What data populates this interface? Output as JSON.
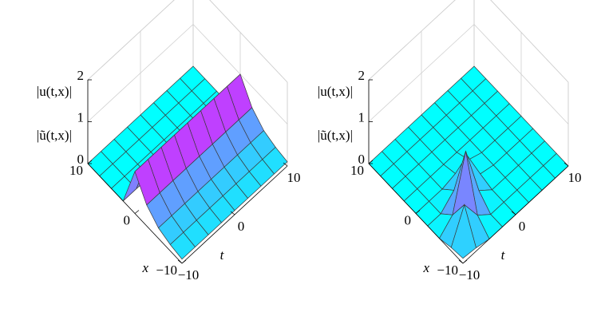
{
  "chart_data": [
    {
      "type": "surface",
      "t": [
        -10,
        -7.5,
        -5,
        -2.5,
        0,
        2.5,
        5,
        7.5,
        10
      ],
      "x": [
        -10,
        -7.5,
        -5,
        -2.5,
        0,
        2.5,
        5,
        7.5,
        10
      ],
      "z": [
        [
          0.1,
          0.15,
          0.25,
          0.5,
          1,
          0,
          0,
          0,
          0
        ],
        [
          0.1,
          0.15,
          0.25,
          0.5,
          1,
          0,
          0,
          0,
          0
        ],
        [
          0.1,
          0.15,
          0.25,
          0.5,
          1,
          0,
          0,
          0,
          0
        ],
        [
          0.1,
          0.15,
          0.25,
          0.5,
          1,
          0,
          0,
          0,
          0
        ],
        [
          0.1,
          0.15,
          0.25,
          0.5,
          1,
          0,
          0,
          0,
          0
        ],
        [
          0.1,
          0.15,
          0.25,
          0.5,
          1,
          0,
          0,
          0,
          0
        ],
        [
          0.1,
          0.15,
          0.25,
          0.5,
          1,
          0,
          0,
          0,
          0
        ],
        [
          0.1,
          0.15,
          0.25,
          0.5,
          1,
          0,
          0,
          0,
          0
        ],
        [
          0.1,
          0.15,
          0.25,
          0.5,
          1,
          0,
          0,
          0,
          0
        ]
      ],
      "tlim": [
        -10,
        10
      ],
      "xlim": [
        -10,
        10
      ],
      "zlim": [
        0,
        2
      ],
      "tticks": [
        {
          "value": -10,
          "label": "−10"
        },
        0,
        10
      ],
      "xticks": [
        {
          "value": -10,
          "label": "−10"
        },
        0,
        10
      ],
      "zticks": [
        0,
        1,
        2
      ],
      "tlabel": "t",
      "xlabel": "x",
      "zlabel": [
        "|u(t,x)|",
        "|ũ(t,x)|"
      ],
      "colormap": [
        "#00ffff",
        "#ff00ff"
      ],
      "grid": true
    },
    {
      "type": "surface",
      "t": [
        -10,
        -7.5,
        -5,
        -2.5,
        0,
        2.5,
        5,
        7.5,
        10
      ],
      "x": [
        -10,
        -7.5,
        -5,
        -2.5,
        0,
        2.5,
        5,
        7.5,
        10
      ],
      "z": [
        [
          0.12,
          0.08,
          0,
          0,
          0,
          0,
          0,
          0,
          0
        ],
        [
          0.08,
          0.81,
          0.27,
          0,
          0,
          0,
          0,
          0,
          0
        ],
        [
          0,
          0.27,
          1.5,
          0.27,
          0,
          0,
          0,
          0,
          0
        ],
        [
          0,
          0,
          0.27,
          0.81,
          0.08,
          0,
          0,
          0,
          0
        ],
        [
          0,
          0,
          0,
          0.08,
          0.12,
          0,
          0,
          0,
          0
        ],
        [
          0,
          0,
          0,
          0,
          0,
          0,
          0,
          0,
          0
        ],
        [
          0,
          0,
          0,
          0,
          0,
          0,
          0,
          0,
          0
        ],
        [
          0,
          0,
          0,
          0,
          0,
          0,
          0,
          0,
          0
        ],
        [
          0,
          0,
          0,
          0,
          0,
          0,
          0,
          0,
          0
        ]
      ],
      "tlim": [
        -10,
        10
      ],
      "xlim": [
        -10,
        10
      ],
      "zlim": [
        0,
        2
      ],
      "tticks": [
        {
          "value": -10,
          "label": "−10"
        },
        0,
        10
      ],
      "xticks": [
        {
          "value": -10,
          "label": "−10"
        },
        0,
        10
      ],
      "zticks": [
        0,
        1,
        2
      ],
      "tlabel": "t",
      "xlabel": "x",
      "zlabel": [
        "|u(t,x)|",
        "|ũ(t,x)|"
      ],
      "colormap": [
        "#00ffff",
        "#ff00ff"
      ],
      "grid": true
    }
  ]
}
